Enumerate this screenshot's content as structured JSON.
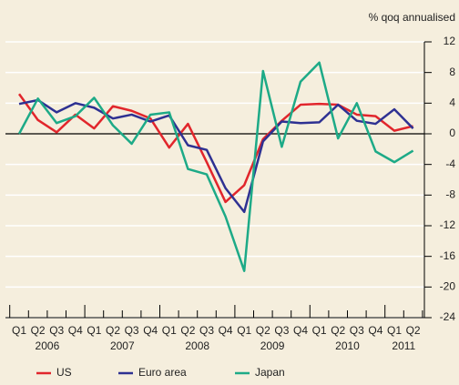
{
  "chart_data": {
    "type": "line",
    "y_label": "% qoq annualised",
    "categories": [
      "Q1",
      "Q2",
      "Q3",
      "Q4",
      "Q1",
      "Q2",
      "Q3",
      "Q4",
      "Q1",
      "Q2",
      "Q3",
      "Q4",
      "Q1",
      "Q2",
      "Q3",
      "Q4",
      "Q1",
      "Q2",
      "Q3",
      "Q4",
      "Q1",
      "Q2"
    ],
    "years": [
      "2006",
      "2007",
      "2008",
      "2009",
      "2010",
      "2011"
    ],
    "series": [
      {
        "name": "US",
        "color": "#e1262c",
        "values": [
          5.2,
          1.8,
          0.2,
          2.5,
          0.7,
          3.6,
          3.0,
          2.0,
          -1.8,
          1.3,
          -3.7,
          -8.9,
          -6.7,
          -0.7,
          1.7,
          3.8,
          3.9,
          3.8,
          2.5,
          2.3,
          0.4,
          1.0
        ]
      },
      {
        "name": "Euro area",
        "color": "#2e3192",
        "values": [
          3.9,
          4.4,
          2.8,
          4.0,
          3.4,
          2.0,
          2.5,
          1.6,
          2.4,
          -1.5,
          -2.1,
          -7.1,
          -10.2,
          -1.0,
          1.6,
          1.4,
          1.5,
          3.8,
          1.7,
          1.3,
          3.2,
          0.7
        ]
      },
      {
        "name": "Japan",
        "color": "#1daa87",
        "values": [
          0.0,
          4.6,
          1.4,
          2.3,
          4.7,
          1.1,
          -1.3,
          2.5,
          2.8,
          -4.6,
          -5.3,
          -10.8,
          -17.9,
          8.2,
          -1.7,
          6.8,
          9.3,
          -0.6,
          4.0,
          -2.3,
          -3.7,
          -2.2
        ]
      }
    ],
    "ylim": [
      -24,
      12
    ],
    "yticks": [
      12,
      8,
      4,
      0,
      -4,
      -8,
      -12,
      -16,
      -20,
      -24
    ],
    "grid": true
  }
}
